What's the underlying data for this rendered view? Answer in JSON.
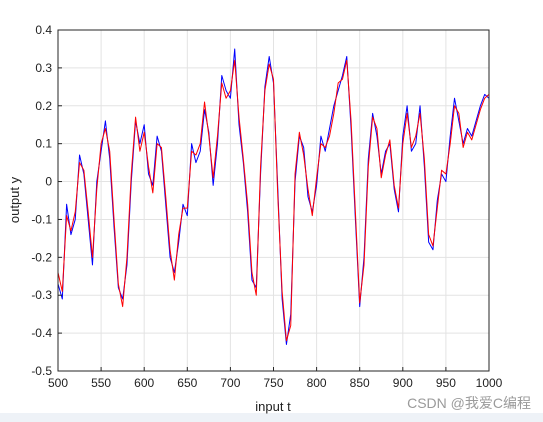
{
  "chart_data": {
    "type": "line",
    "title": "",
    "xlabel": "input t",
    "ylabel": "output y",
    "xlim": [
      500,
      1000
    ],
    "ylim": [
      -0.5,
      0.4
    ],
    "xticks": [
      500,
      550,
      600,
      650,
      700,
      750,
      800,
      850,
      900,
      950,
      1000
    ],
    "yticks": [
      -0.5,
      -0.4,
      -0.3,
      -0.2,
      -0.1,
      0,
      0.1,
      0.2,
      0.3,
      0.4
    ],
    "grid": true,
    "legend": "none",
    "series": [
      {
        "color": "#0000ff",
        "x": [
          500,
          505,
          510,
          515,
          520,
          525,
          530,
          535,
          540,
          545,
          550,
          555,
          560,
          565,
          570,
          575,
          580,
          585,
          590,
          595,
          600,
          605,
          610,
          615,
          620,
          625,
          630,
          635,
          640,
          645,
          650,
          655,
          660,
          665,
          670,
          675,
          680,
          685,
          690,
          695,
          700,
          705,
          710,
          715,
          720,
          725,
          730,
          735,
          740,
          745,
          750,
          755,
          760,
          765,
          770,
          775,
          780,
          785,
          790,
          795,
          800,
          805,
          810,
          815,
          820,
          825,
          830,
          835,
          840,
          845,
          850,
          855,
          860,
          865,
          870,
          875,
          880,
          885,
          890,
          895,
          900,
          905,
          910,
          915,
          920,
          925,
          930,
          935,
          940,
          945,
          950,
          955,
          960,
          965,
          970,
          975,
          980,
          985,
          990,
          995,
          1000
        ],
        "y": [
          -0.27,
          -0.31,
          -0.06,
          -0.14,
          -0.1,
          0.07,
          0.02,
          -0.1,
          -0.22,
          0.0,
          0.08,
          0.16,
          0.06,
          -0.12,
          -0.28,
          -0.31,
          -0.22,
          0.0,
          0.16,
          0.1,
          0.15,
          0.02,
          -0.01,
          0.12,
          0.08,
          -0.06,
          -0.2,
          -0.24,
          -0.16,
          -0.06,
          -0.09,
          0.1,
          0.05,
          0.08,
          0.19,
          0.13,
          -0.01,
          0.1,
          0.28,
          0.24,
          0.22,
          0.35,
          0.15,
          0.05,
          -0.08,
          -0.26,
          -0.28,
          0.02,
          0.25,
          0.33,
          0.26,
          -0.02,
          -0.31,
          -0.43,
          -0.35,
          0.0,
          0.12,
          0.09,
          -0.04,
          -0.08,
          -0.01,
          0.12,
          0.08,
          0.14,
          0.2,
          0.24,
          0.28,
          0.33,
          0.14,
          -0.1,
          -0.33,
          -0.2,
          0.06,
          0.18,
          0.12,
          0.02,
          0.08,
          0.1,
          -0.02,
          -0.08,
          0.12,
          0.2,
          0.08,
          0.1,
          0.2,
          0.04,
          -0.16,
          -0.18,
          -0.05,
          0.02,
          0.0,
          0.12,
          0.22,
          0.16,
          0.1,
          0.14,
          0.12,
          0.16,
          0.2,
          0.23,
          0.22
        ]
      },
      {
        "color": "#ff0000",
        "x": [
          500,
          505,
          510,
          515,
          520,
          525,
          530,
          535,
          540,
          545,
          550,
          555,
          560,
          565,
          570,
          575,
          580,
          585,
          590,
          595,
          600,
          605,
          610,
          615,
          620,
          625,
          630,
          635,
          640,
          645,
          650,
          655,
          660,
          665,
          670,
          675,
          680,
          685,
          690,
          695,
          700,
          705,
          710,
          715,
          720,
          725,
          730,
          735,
          740,
          745,
          750,
          755,
          760,
          765,
          770,
          775,
          780,
          785,
          790,
          795,
          800,
          805,
          810,
          815,
          820,
          825,
          830,
          835,
          840,
          845,
          850,
          855,
          860,
          865,
          870,
          875,
          880,
          885,
          890,
          895,
          900,
          905,
          910,
          915,
          920,
          925,
          930,
          935,
          940,
          945,
          950,
          955,
          960,
          965,
          970,
          975,
          980,
          985,
          990,
          995,
          1000
        ],
        "y": [
          -0.24,
          -0.29,
          -0.09,
          -0.13,
          -0.08,
          0.05,
          0.03,
          -0.08,
          -0.2,
          -0.02,
          0.1,
          0.14,
          0.08,
          -0.1,
          -0.27,
          -0.33,
          -0.2,
          0.02,
          0.17,
          0.08,
          0.13,
          0.04,
          -0.03,
          0.1,
          0.09,
          -0.04,
          -0.18,
          -0.26,
          -0.14,
          -0.07,
          -0.07,
          0.08,
          0.07,
          0.1,
          0.21,
          0.12,
          0.01,
          0.12,
          0.26,
          0.22,
          0.24,
          0.32,
          0.17,
          0.06,
          -0.06,
          -0.24,
          -0.3,
          0.04,
          0.24,
          0.31,
          0.27,
          -0.04,
          -0.29,
          -0.42,
          -0.38,
          0.02,
          0.13,
          0.07,
          -0.02,
          -0.09,
          0.01,
          0.1,
          0.09,
          0.12,
          0.18,
          0.26,
          0.27,
          0.32,
          0.16,
          -0.08,
          -0.32,
          -0.22,
          0.04,
          0.17,
          0.14,
          0.01,
          0.07,
          0.11,
          -0.01,
          -0.07,
          0.1,
          0.18,
          0.09,
          0.12,
          0.18,
          0.06,
          -0.14,
          -0.17,
          -0.07,
          0.03,
          0.02,
          0.1,
          0.2,
          0.18,
          0.09,
          0.13,
          0.11,
          0.15,
          0.19,
          0.22,
          0.23
        ]
      }
    ]
  },
  "watermark": "CSDN @我爱C编程"
}
